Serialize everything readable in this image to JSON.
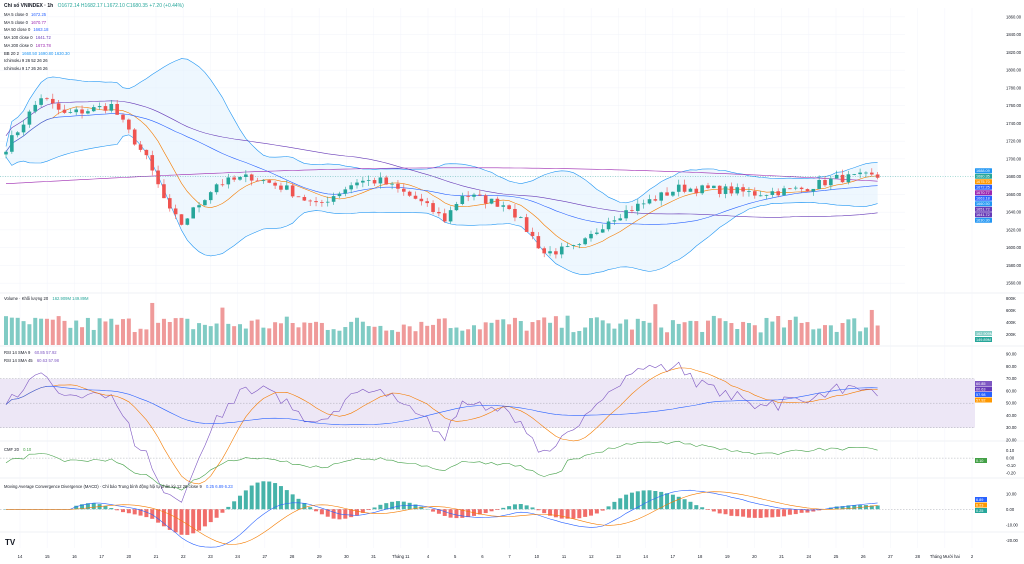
{
  "header": {
    "symbol": "Chỉ số VNINDEX · 1h",
    "ohlc": "O1672.14 H1682.17 L1672.10 C1680.35 +7.20 (+0.44%)"
  },
  "legend_main": [
    {
      "label": "MA 5 close 0",
      "value": "1672.25",
      "color": "#2962ff"
    },
    {
      "label": "MA 5 close 0",
      "value": "1670.77",
      "color": "#9c27b0"
    },
    {
      "label": "MA 50 close 0",
      "value": "1663.18",
      "color": "#2962ff"
    },
    {
      "label": "MA 100 close 0",
      "value": "1641.72",
      "color": "#673ab7"
    },
    {
      "label": "MA 200 close 0",
      "value": "1673.78",
      "color": "#9c27b0"
    },
    {
      "label": "BB 20 2",
      "value": "1660.50  1690.80  1630.30",
      "color": "#2196f3"
    },
    {
      "label": "Ichimoku 9 26 52 26 26",
      "value": "",
      "color": "#b2b5be"
    },
    {
      "label": "Ichimoku 9 17 26 26 26",
      "value": "",
      "color": "#b2b5be"
    }
  ],
  "pane_labels": {
    "volume": "Volume · Khối lượng 20",
    "volume_vals": "162.909M  149.89M",
    "rsi1": "RSI 14 SMA 9",
    "rsi1_vals": "60.85  57.92",
    "rsi2": "RSI 14 SMA 45",
    "rsi2_vals": "60.63  57.98",
    "cmf": "CMF 20",
    "cmf_vals": "0.10",
    "macd": "Moving Average Convergence Divergence (MACD) · Chỉ báo Trung bình động hội tụ phân kỳ 12 26 close 9",
    "macd_vals": "0.25  6.89  6.23"
  },
  "logo": "TV",
  "colors": {
    "up": "#26a69a",
    "down": "#ef5350",
    "bb": "#2196f3",
    "bb_fill": "#e3f2fd",
    "rsi_band": "#ede7f6",
    "ma_short": "#f57c00",
    "ma_mid": "#2962ff",
    "ma_long": "#673ab7",
    "ma_200": "#9c27b0",
    "vol_up": "#80cbc4",
    "vol_down": "#ef9a9a"
  },
  "chart_data": [
    {
      "type": "candlestick",
      "title": "Chỉ số VNINDEX · 1h",
      "y_ticks": [
        1560,
        1580,
        1600,
        1620,
        1640,
        1660,
        1680,
        1700,
        1720,
        1740,
        1760,
        1780,
        1800,
        1820,
        1840,
        1860
      ],
      "ylim": [
        1550,
        1870
      ],
      "x_ticks": [
        "14",
        "15",
        "16",
        "17",
        "20",
        "21",
        "22",
        "23",
        "24",
        "27",
        "28",
        "29",
        "30",
        "31",
        "Tháng 11",
        "4",
        "5",
        "6",
        "7",
        "10",
        "11",
        "12",
        "13",
        "14",
        "17",
        "18",
        "19",
        "20",
        "21",
        "24",
        "25",
        "26",
        "27",
        "28",
        "Tháng Mười hai",
        "2"
      ],
      "price_labels": [
        "1688.09",
        "1680.35",
        "1675.70",
        "1672.25",
        "1670.77",
        "1663.18",
        "1660.50",
        "1651.72",
        "1641.72",
        "1630.30"
      ],
      "grid": true,
      "legend": "top-left"
    },
    {
      "type": "bar",
      "title": "Volume · Khối lượng 20",
      "y_ticks": [
        "200K",
        "400K",
        "600K",
        "800K"
      ],
      "last_labels": [
        "162.909M",
        "149.89M"
      ]
    },
    {
      "type": "line",
      "title": "RSI 14",
      "y_ticks": [
        20,
        30,
        40,
        50,
        60,
        70,
        80,
        90
      ],
      "ylim": [
        20,
        95
      ],
      "band": [
        30,
        70
      ],
      "last_labels": [
        "60.85",
        "60.63",
        "57.98",
        "57.92"
      ]
    },
    {
      "type": "line",
      "title": "CMF 20",
      "y_ticks": [
        -0.2,
        -0.1,
        0,
        0.1
      ],
      "ylim": [
        -0.25,
        0.2
      ],
      "last_labels": [
        "0.10"
      ]
    },
    {
      "type": "bar",
      "title": "MACD 12 26 close 9",
      "y_ticks": [
        -20,
        -10,
        0,
        10
      ],
      "ylim": [
        -25,
        15
      ],
      "last_labels": [
        "6.89",
        "6.23",
        "0.25"
      ]
    }
  ]
}
